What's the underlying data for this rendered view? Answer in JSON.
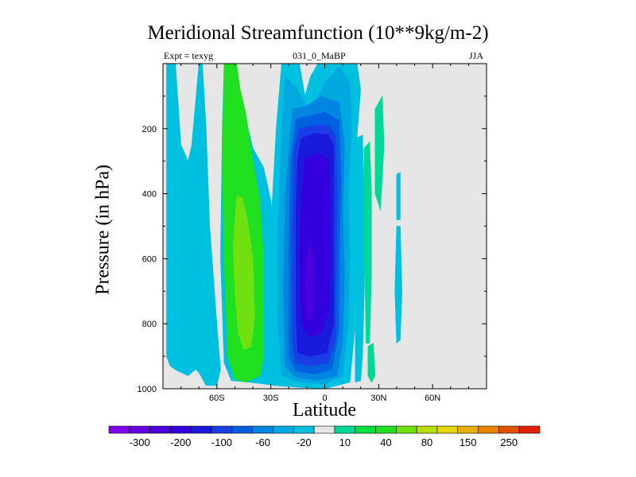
{
  "chart_data": {
    "type": "contour",
    "title": "Meridional Streamfunction (10**9kg/m-2)",
    "subtitle_left": "Expt = texyg",
    "subtitle_center": "031_0_MaBP",
    "subtitle_right": "JJA",
    "xlabel": "Latitude",
    "ylabel": "Pressure (in hPa)",
    "xlim": [
      -90,
      90
    ],
    "ylim": [
      1000,
      0
    ],
    "x_ticks": [
      {
        "value": -60,
        "label": "60S"
      },
      {
        "value": -30,
        "label": "30S"
      },
      {
        "value": 0,
        "label": "0"
      },
      {
        "value": 30,
        "label": "30N"
      },
      {
        "value": 60,
        "label": "60N"
      }
    ],
    "y_ticks": [
      {
        "value": 200,
        "label": "200"
      },
      {
        "value": 400,
        "label": "400"
      },
      {
        "value": 600,
        "label": "600"
      },
      {
        "value": 800,
        "label": "800"
      },
      {
        "value": 1000,
        "label": "1000"
      }
    ],
    "background_color": "#e6e6e6",
    "colorbar": {
      "levels": [
        "-300",
        "-200",
        "-100",
        "-60",
        "-20",
        "10",
        "40",
        "80",
        "150",
        "250"
      ],
      "colors": [
        "#7f00ee",
        "#6600e5",
        "#4c00dd",
        "#3300dd",
        "#1a1add",
        "#1a3de5",
        "#0060e0",
        "#0085e0",
        "#00a8e0",
        "#00c0e0",
        "#e6e6e6",
        "#00d898",
        "#00e040",
        "#20e020",
        "#70e010",
        "#b8e000",
        "#e6d800",
        "#e8b000",
        "#e88400",
        "#e05000",
        "#e02000"
      ]
    },
    "regions": [
      {
        "name": "polar-cyan-band-left",
        "color": "#00c0e0",
        "points": [
          [
            -88,
            2
          ],
          [
            -83,
            2
          ],
          [
            -80,
            250
          ],
          [
            -76,
            300
          ],
          [
            -74,
            250
          ],
          [
            -70,
            2
          ],
          [
            -68,
            2
          ],
          [
            -66,
            200
          ],
          [
            -64,
            500
          ],
          [
            -60,
            800
          ],
          [
            -58,
            940
          ],
          [
            -60,
            990
          ],
          [
            -66,
            990
          ],
          [
            -70,
            950
          ],
          [
            -72,
            940
          ],
          [
            -76,
            960
          ],
          [
            -82,
            945
          ],
          [
            -86,
            930
          ],
          [
            -88,
            900
          ]
        ]
      },
      {
        "name": "mid-cyan-band-right",
        "color": "#00c0e0",
        "points": [
          [
            -56,
            2
          ],
          [
            -50,
            2
          ],
          [
            -46,
            120
          ],
          [
            -40,
            260
          ],
          [
            -34,
            320
          ],
          [
            -30,
            420
          ],
          [
            -26,
            620
          ],
          [
            -26,
            900
          ],
          [
            -28,
            990
          ],
          [
            -34,
            985
          ],
          [
            -42,
            980
          ],
          [
            -52,
            975
          ],
          [
            -56,
            920
          ],
          [
            -58,
            600
          ],
          [
            -57,
            200
          ]
        ]
      },
      {
        "name": "green-cell",
        "color": "#20e020",
        "points": [
          [
            -56,
            2
          ],
          [
            -49,
            2
          ],
          [
            -47,
            80
          ],
          [
            -44,
            150
          ],
          [
            -40,
            300
          ],
          [
            -36,
            420
          ],
          [
            -34,
            600
          ],
          [
            -34,
            900
          ],
          [
            -36,
            960
          ],
          [
            -44,
            980
          ],
          [
            -50,
            970
          ],
          [
            -54,
            900
          ],
          [
            -56,
            600
          ],
          [
            -57,
            300
          ]
        ]
      },
      {
        "name": "light-green-core",
        "color": "#70e010",
        "points": [
          [
            -49,
            410
          ],
          [
            -46,
            410
          ],
          [
            -43,
            480
          ],
          [
            -40,
            600
          ],
          [
            -39,
            780
          ],
          [
            -41,
            870
          ],
          [
            -45,
            880
          ],
          [
            -48,
            830
          ],
          [
            -50,
            700
          ],
          [
            -51,
            560
          ]
        ]
      },
      {
        "name": "southern-cell-shell",
        "color": "#00c0e0",
        "points": [
          [
            -24,
            2
          ],
          [
            -14,
            2
          ],
          [
            -11,
            100
          ],
          [
            -8,
            40
          ],
          [
            -4,
            2
          ],
          [
            18,
            2
          ],
          [
            20,
            80
          ],
          [
            18,
            220
          ],
          [
            17,
            400
          ],
          [
            18,
            600
          ],
          [
            17,
            800
          ],
          [
            14,
            980
          ],
          [
            0,
            1000
          ],
          [
            -16,
            995
          ],
          [
            -28,
            990
          ],
          [
            -30,
            900
          ],
          [
            -30,
            500
          ],
          [
            -27,
            200
          ]
        ]
      },
      {
        "name": "southern-cell-blue-1",
        "color": "#00a8e0",
        "points": [
          [
            -22,
            40
          ],
          [
            -15,
            80
          ],
          [
            -8,
            150
          ],
          [
            0,
            60
          ],
          [
            8,
            10
          ],
          [
            14,
            60
          ],
          [
            15,
            200
          ],
          [
            13,
            400
          ],
          [
            14,
            600
          ],
          [
            13,
            800
          ],
          [
            10,
            960
          ],
          [
            0,
            985
          ],
          [
            -14,
            980
          ],
          [
            -24,
            960
          ],
          [
            -26,
            800
          ],
          [
            -26,
            500
          ],
          [
            -24,
            200
          ]
        ]
      },
      {
        "name": "southern-cell-blue-2",
        "color": "#0085e0",
        "points": [
          [
            -18,
            140
          ],
          [
            -10,
            130
          ],
          [
            -2,
            100
          ],
          [
            8,
            120
          ],
          [
            11,
            250
          ],
          [
            10,
            450
          ],
          [
            11,
            650
          ],
          [
            10,
            850
          ],
          [
            7,
            960
          ],
          [
            -4,
            975
          ],
          [
            -16,
            965
          ],
          [
            -22,
            930
          ],
          [
            -23,
            700
          ],
          [
            -22,
            400
          ]
        ]
      },
      {
        "name": "southern-cell-blue-3",
        "color": "#0060e0",
        "points": [
          [
            -16,
            170
          ],
          [
            -8,
            160
          ],
          [
            0,
            150
          ],
          [
            8,
            175
          ],
          [
            9,
            350
          ],
          [
            8,
            600
          ],
          [
            8,
            820
          ],
          [
            4,
            940
          ],
          [
            -6,
            955
          ],
          [
            -16,
            945
          ],
          [
            -20,
            900
          ],
          [
            -20,
            600
          ],
          [
            -19,
            300
          ]
        ]
      },
      {
        "name": "southern-cell-blue-4",
        "color": "#1a3de5",
        "points": [
          [
            -14,
            200
          ],
          [
            -6,
            190
          ],
          [
            2,
            190
          ],
          [
            6,
            220
          ],
          [
            7,
            400
          ],
          [
            6,
            700
          ],
          [
            6,
            850
          ],
          [
            2,
            920
          ],
          [
            -8,
            930
          ],
          [
            -16,
            920
          ],
          [
            -18,
            850
          ],
          [
            -18,
            500
          ],
          [
            -17,
            260
          ]
        ]
      },
      {
        "name": "southern-cell-blue-5",
        "color": "#1a1add",
        "points": [
          [
            -13,
            230
          ],
          [
            -6,
            215
          ],
          [
            2,
            218
          ],
          [
            5,
            250
          ],
          [
            5,
            500
          ],
          [
            5,
            800
          ],
          [
            1,
            890
          ],
          [
            -8,
            900
          ],
          [
            -15,
            890
          ],
          [
            -16,
            780
          ],
          [
            -16,
            450
          ],
          [
            -15,
            290
          ]
        ]
      },
      {
        "name": "southern-cell-core",
        "color": "#3300dd",
        "points": [
          [
            -11,
            290
          ],
          [
            -4,
            280
          ],
          [
            2,
            290
          ],
          [
            3,
            420
          ],
          [
            3,
            620
          ],
          [
            2,
            760
          ],
          [
            -2,
            830
          ],
          [
            -8,
            840
          ],
          [
            -13,
            800
          ],
          [
            -14,
            600
          ],
          [
            -13,
            400
          ]
        ]
      },
      {
        "name": "southern-cell-center",
        "color": "#4c00dd",
        "points": [
          [
            -10,
            600
          ],
          [
            -8,
            560
          ],
          [
            -6,
            600
          ],
          [
            -7,
            780
          ],
          [
            -10,
            790
          ],
          [
            -11,
            700
          ]
        ]
      },
      {
        "name": "tropical-cyan-strip",
        "color": "#00c0e0",
        "points": [
          [
            17,
            230
          ],
          [
            21,
            220
          ],
          [
            22,
            400
          ],
          [
            22,
            700
          ],
          [
            21,
            900
          ],
          [
            20,
            975
          ],
          [
            17,
            980
          ],
          [
            17,
            600
          ]
        ]
      },
      {
        "name": "tropical-green-strip",
        "color": "#00d898",
        "points": [
          [
            22,
            260
          ],
          [
            25,
            240
          ],
          [
            26,
            400
          ],
          [
            26,
            650
          ],
          [
            25,
            860
          ],
          [
            23,
            860
          ],
          [
            22,
            560
          ]
        ]
      },
      {
        "name": "tropical-green-upper",
        "color": "#00d898",
        "points": [
          [
            28,
            140
          ],
          [
            32,
            100
          ],
          [
            33,
            250
          ],
          [
            31,
            450
          ],
          [
            28,
            400
          ]
        ]
      },
      {
        "name": "tropical-green-lower",
        "color": "#00d898",
        "points": [
          [
            24,
            870
          ],
          [
            27,
            860
          ],
          [
            28,
            960
          ],
          [
            26,
            980
          ],
          [
            24,
            960
          ]
        ]
      },
      {
        "name": "subtropical-cyan-strip",
        "color": "#00c0e0",
        "points": [
          [
            40,
            500
          ],
          [
            42,
            500
          ],
          [
            43,
            700
          ],
          [
            42,
            850
          ],
          [
            40,
            860
          ],
          [
            39,
            700
          ]
        ]
      },
      {
        "name": "subtropical-cyan-upper",
        "color": "#00c0e0",
        "points": [
          [
            40,
            340
          ],
          [
            42,
            335
          ],
          [
            42,
            480
          ],
          [
            40,
            480
          ]
        ]
      }
    ]
  }
}
